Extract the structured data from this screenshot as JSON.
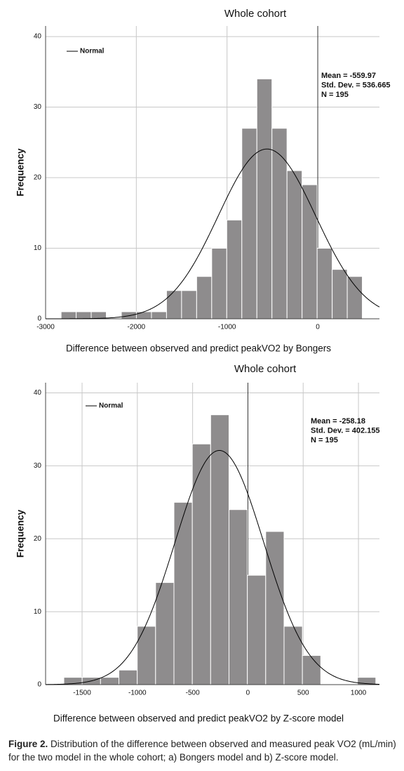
{
  "chart_data": [
    {
      "type": "histogram",
      "title": "Whole cohort",
      "xlabel": "Difference between observed and predict peakVO2 by Bongers",
      "ylabel": "Frequency",
      "bins": [
        -2829,
        -2663,
        -2497,
        -2331,
        -2165,
        -1999,
        -1833,
        -1667,
        -1501,
        -1335,
        -1169,
        -1003,
        -837,
        -671,
        -505,
        -339,
        -173,
        -7,
        159,
        325,
        491
      ],
      "values": [
        1,
        1,
        1,
        0,
        1,
        1,
        1,
        4,
        4,
        6,
        10,
        14,
        27,
        34,
        27,
        21,
        19,
        10,
        7,
        6
      ],
      "color": "#8e8c8d",
      "xlim": [
        -3000,
        680
      ],
      "ylim": [
        0,
        41.5
      ],
      "xticks": [
        -3000,
        -2000,
        -1000,
        0
      ],
      "yticks": [
        0,
        10,
        20,
        30,
        40
      ],
      "grid": true,
      "curve": {
        "name": "Normal",
        "color": "#000000",
        "mean": {
          "value": -559.97,
          "label": "Mean = -559.97"
        },
        "sd": {
          "value": 536.665,
          "label": "Std. Dev. = 536.665"
        },
        "n": {
          "value": 195,
          "label": "N = 195"
        }
      },
      "legend": "upper left"
    },
    {
      "type": "histogram",
      "title": "Whole cohort",
      "xlabel": "Difference between observed and predict peakVO2 by Z-score model",
      "ylabel": "Frequency",
      "bins": [
        -1665,
        -1499,
        -1333,
        -1167,
        -1001,
        -835,
        -669,
        -503,
        -337,
        -171,
        -5,
        161,
        327,
        493,
        659,
        825,
        991,
        1157
      ],
      "values": [
        1,
        1,
        1,
        2,
        8,
        14,
        25,
        33,
        37,
        24,
        15,
        21,
        8,
        4,
        0,
        0,
        1
      ],
      "color": "#8e8c8d",
      "xlim": [
        -1830,
        1190
      ],
      "ylim": [
        0,
        41.4
      ],
      "xticks": [
        -1500,
        -1000,
        -500,
        0,
        500,
        1000
      ],
      "yticks": [
        0,
        10,
        20,
        30,
        40
      ],
      "grid": true,
      "curve": {
        "name": "Normal",
        "color": "#000000",
        "mean": {
          "value": -258.18,
          "label": "Mean = -258.18"
        },
        "sd": {
          "value": 402.155,
          "label": "Std. Dev. = 402.155"
        },
        "n": {
          "value": 195,
          "label": "N = 195"
        }
      },
      "legend": "upper left"
    }
  ],
  "caption": {
    "label": "Figure 2.",
    "text": "Distribution of the difference between observed and measured peak VO2 (mL/min) for the two model in the whole cohort; a) Bongers model and b) Z-score model."
  }
}
